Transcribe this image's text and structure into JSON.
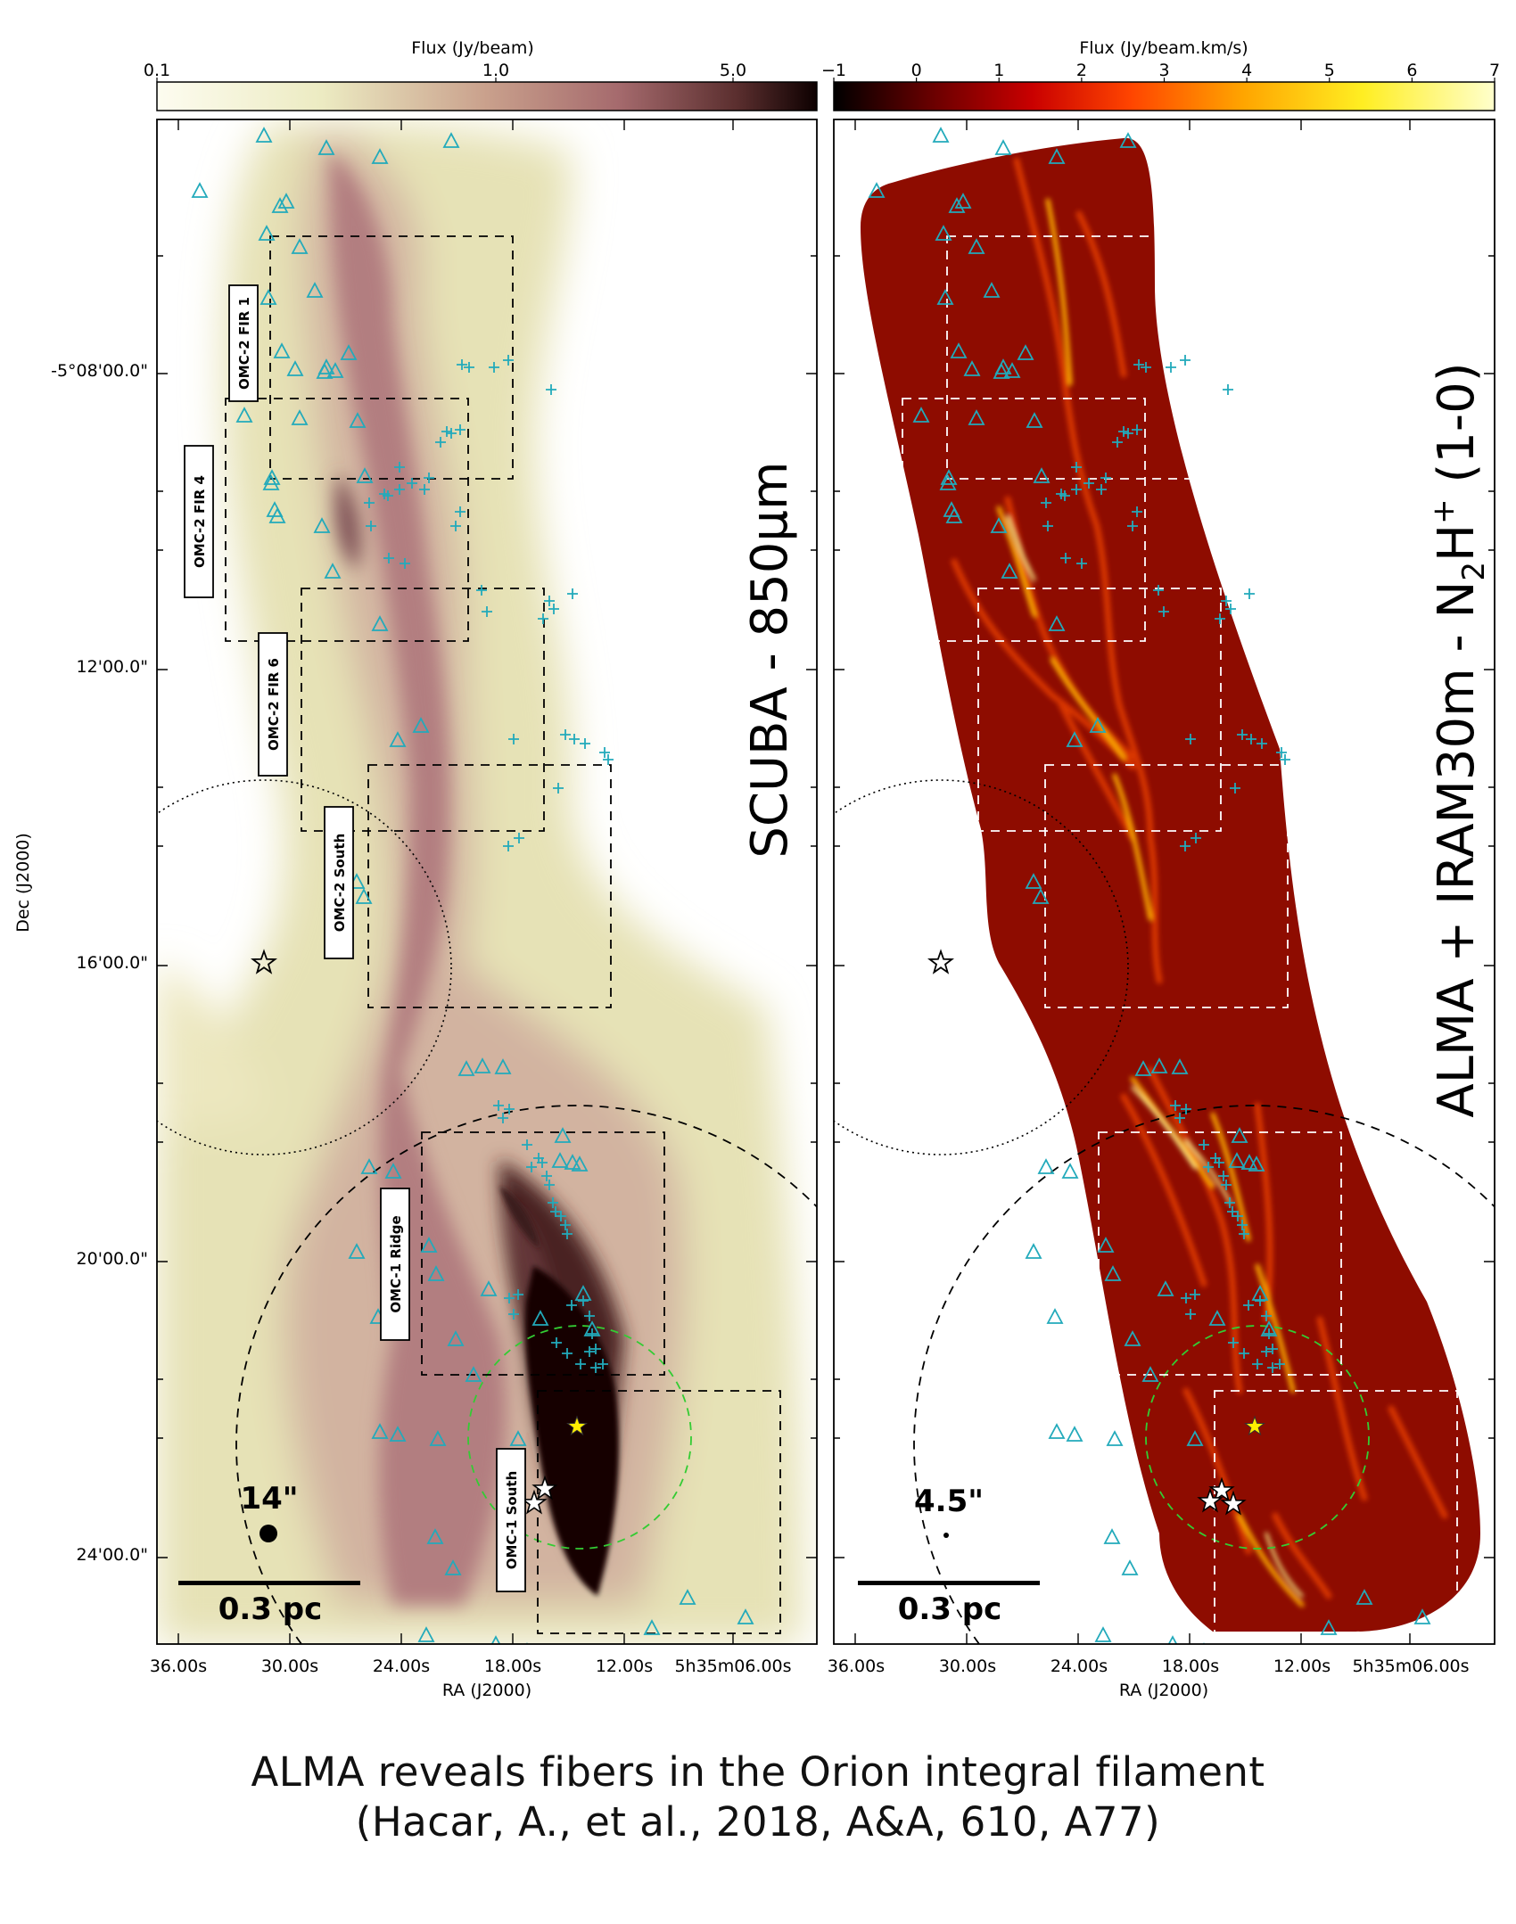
{
  "figure": {
    "left_colorbar": {
      "label": "Flux (Jy/beam)",
      "ticks": [
        "0.1",
        "1.0",
        "5.0"
      ],
      "colors": [
        "#fdfcf0",
        "#ecebc2",
        "#c9a08c",
        "#a56a6d",
        "#5a2e2e",
        "#0d0000"
      ]
    },
    "right_colorbar": {
      "label": "Flux (Jy/beam.km/s)",
      "ticks": [
        "−1",
        "0",
        "1",
        "2",
        "3",
        "4",
        "5",
        "6",
        "7"
      ],
      "colors": [
        "#000000",
        "#6a0000",
        "#c90000",
        "#ff4500",
        "#ffa500",
        "#ffee22",
        "#ffffcc"
      ]
    },
    "left_panel": {
      "title": "SCUBA - 850μm",
      "beam_size": "14\"",
      "scalebar": "0.3 pc",
      "regions": [
        "OMC-2 FIR 1",
        "OMC-2 FIR 4",
        "OMC-2 FIR 6",
        "OMC-2 South",
        "OMC-1 Ridge",
        "OMC-1 South"
      ]
    },
    "right_panel": {
      "title_prefix": "ALMA + IRAM30m - N",
      "title_sub": "2",
      "title_mid": "H",
      "title_sup": "+",
      "title_suffix": "(1-0)",
      "beam_size": "4.5\"",
      "scalebar": "0.3 pc"
    },
    "dec_axis": {
      "label": "Dec (J2000)",
      "ticks": [
        "-5°08'00.0\"",
        "12'00.0\"",
        "16'00.0\"",
        "20'00.0\"",
        "24'00.0\""
      ]
    },
    "ra_axis": {
      "label": "RA (J2000)",
      "ticks": [
        "36.00s",
        "30.00s",
        "24.00s",
        "18.00s",
        "12.00s",
        "5h35m06.00s"
      ]
    },
    "colors": {
      "triangle": "#22aabb",
      "cross": "#22aabb",
      "star_yellow": "#ffee00",
      "box_left": "#000000",
      "box_right": "#ffffff",
      "green_circle": "#33cc33"
    }
  },
  "caption": {
    "line1": "ALMA reveals fibers in the Orion integral filament",
    "line2": "(Hacar, A., et al., 2018, A&A, 610, A77)"
  }
}
